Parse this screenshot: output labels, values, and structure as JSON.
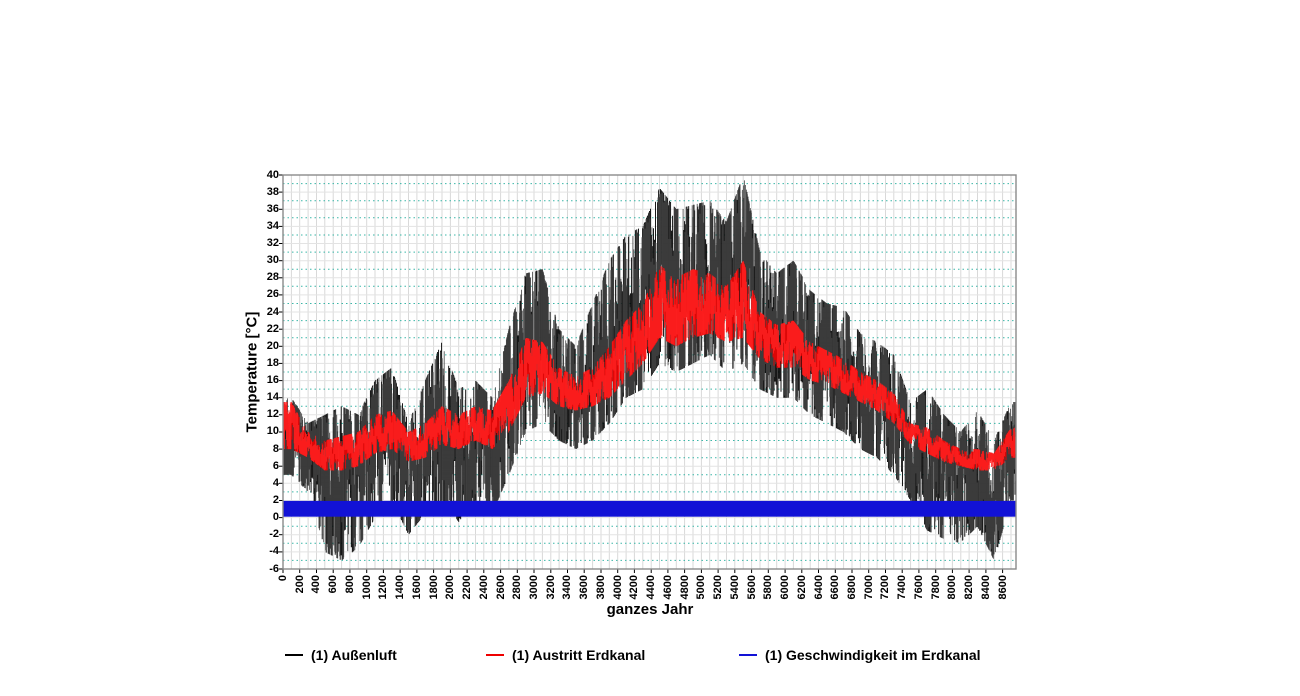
{
  "axes": {
    "x_title": "ganzes Jahr",
    "y_title": "Temperature [°C]",
    "x_ticks": [
      0,
      200,
      400,
      600,
      800,
      1000,
      1200,
      1400,
      1600,
      1800,
      2000,
      2200,
      2400,
      2600,
      2800,
      3000,
      3200,
      3400,
      3600,
      3800,
      4000,
      4200,
      4400,
      4600,
      4800,
      5000,
      5200,
      5400,
      5600,
      5800,
      6000,
      6200,
      6400,
      6600,
      6800,
      7000,
      7200,
      7400,
      7600,
      7800,
      8000,
      8200,
      8400,
      8600
    ],
    "y_ticks": [
      40,
      38,
      36,
      34,
      32,
      30,
      28,
      26,
      24,
      22,
      20,
      18,
      16,
      14,
      12,
      10,
      8,
      6,
      4,
      2,
      0,
      -2,
      -4,
      -6
    ]
  },
  "legend": [
    {
      "label": "(1) Außenluft",
      "color": "#000000"
    },
    {
      "label": "(1) Austritt Erdkanal",
      "color": "#ee0000"
    },
    {
      "label": "(1) Geschwindigkeit im Erdkanal",
      "color": "#1212d6"
    }
  ],
  "colors": {
    "outdoor_air": "#000000",
    "outdoor_air_alt": "#464646",
    "erdkanal_out": "#ee0000",
    "erdkanal_out_alt": "#ff2222",
    "velocity_band": "#1212d6",
    "grid_teal": "#2fb3a3",
    "grid_gray_h": "#e3e3e3",
    "grid_gray_v": "#d9d9d9",
    "frame": "#8a8a8a"
  },
  "chart_data": {
    "type": "line",
    "title": "",
    "xlabel": "ganzes Jahr",
    "ylabel": "Temperature [°C]",
    "xlim": [
      0,
      8760
    ],
    "ylim": [
      -6,
      40
    ],
    "x_tick_step": 200,
    "y_tick_step": 2,
    "grid": "horizontal teal dotted lines at odd °C values, faint gray lines at even °C values and every 100 h",
    "legend_position": "bottom",
    "x_unit": "hour of year",
    "series": [
      {
        "name": "(1) Außenluft",
        "color": "#000000",
        "style": "dense hourly line (daily min/max oscillation), captured as envelope per 200 h bucket",
        "envelope": {
          "x": [
            100,
            300,
            500,
            700,
            900,
            1100,
            1300,
            1500,
            1700,
            1900,
            2100,
            2300,
            2500,
            2700,
            2900,
            3100,
            3300,
            3500,
            3700,
            3900,
            4100,
            4300,
            4500,
            4700,
            4900,
            5100,
            5300,
            5500,
            5700,
            5900,
            6100,
            6300,
            6500,
            6700,
            6900,
            7100,
            7300,
            7500,
            7700,
            7900,
            8100,
            8300,
            8500,
            8700
          ],
          "max": [
            14,
            11,
            12,
            13,
            12,
            16,
            17.5,
            11,
            16,
            20.5,
            15,
            16,
            14,
            22,
            28.5,
            29,
            22,
            20,
            25,
            30,
            33,
            34,
            38.5,
            36,
            36.5,
            37,
            34.5,
            40,
            31,
            28.5,
            30,
            26.5,
            25,
            24.5,
            21.5,
            20.5,
            19,
            13.5,
            15,
            12,
            10,
            12.5,
            9,
            13.5
          ],
          "min": [
            5,
            3,
            -4,
            -5,
            -3.5,
            0,
            2,
            -2,
            0.5,
            2,
            -0.5,
            2,
            0.5,
            5,
            10,
            11,
            9,
            8,
            9,
            11,
            14,
            15,
            18,
            17,
            18,
            19,
            17,
            18,
            15,
            14,
            14,
            12,
            11,
            10,
            8,
            7,
            5,
            2,
            -1.5,
            -2.5,
            -3,
            -1,
            -5,
            2
          ]
        }
      },
      {
        "name": "(1) Austritt Erdkanal",
        "color": "#ee0000",
        "style": "dense hourly line, smoother than outside air, captured as envelope per 200 h bucket",
        "envelope": {
          "x": [
            100,
            300,
            500,
            700,
            900,
            1100,
            1300,
            1500,
            1700,
            1900,
            2100,
            2300,
            2500,
            2700,
            2900,
            3100,
            3300,
            3500,
            3700,
            3900,
            4100,
            4300,
            4500,
            4700,
            4900,
            5100,
            5300,
            5500,
            5700,
            5900,
            6100,
            6300,
            6500,
            6700,
            6900,
            7100,
            7300,
            7500,
            7700,
            7900,
            8100,
            8300,
            8500,
            8700
          ],
          "max": [
            13.5,
            10,
            9,
            9.5,
            10,
            12,
            12.5,
            10,
            11,
            13,
            12,
            13,
            12.5,
            16,
            21,
            20.5,
            17.5,
            16.5,
            17.5,
            20,
            23,
            25,
            29.5,
            28,
            29,
            28.5,
            27,
            30,
            24,
            22.5,
            23,
            20.5,
            19.5,
            18.5,
            17,
            16,
            14.5,
            11,
            10.5,
            9,
            8,
            8,
            7.5,
            10.5
          ],
          "min": [
            8,
            7,
            5.5,
            5.5,
            6,
            7.5,
            8,
            6.5,
            7,
            8.5,
            8,
            9,
            8,
            10,
            14,
            14.5,
            13,
            12.5,
            13,
            14,
            16,
            18,
            21,
            20,
            21,
            21.5,
            20.5,
            21,
            18.5,
            17.5,
            17.5,
            16,
            15.5,
            14.5,
            13.5,
            12.5,
            11,
            8.5,
            7.5,
            6.5,
            6,
            5.5,
            5.5,
            7
          ]
        }
      },
      {
        "name": "(1) Geschwindigkeit im Erdkanal",
        "color": "#1212d6",
        "style": "constant thick horizontal band across the whole year",
        "band": {
          "min": 0.1,
          "max": 1.95
        }
      }
    ]
  }
}
